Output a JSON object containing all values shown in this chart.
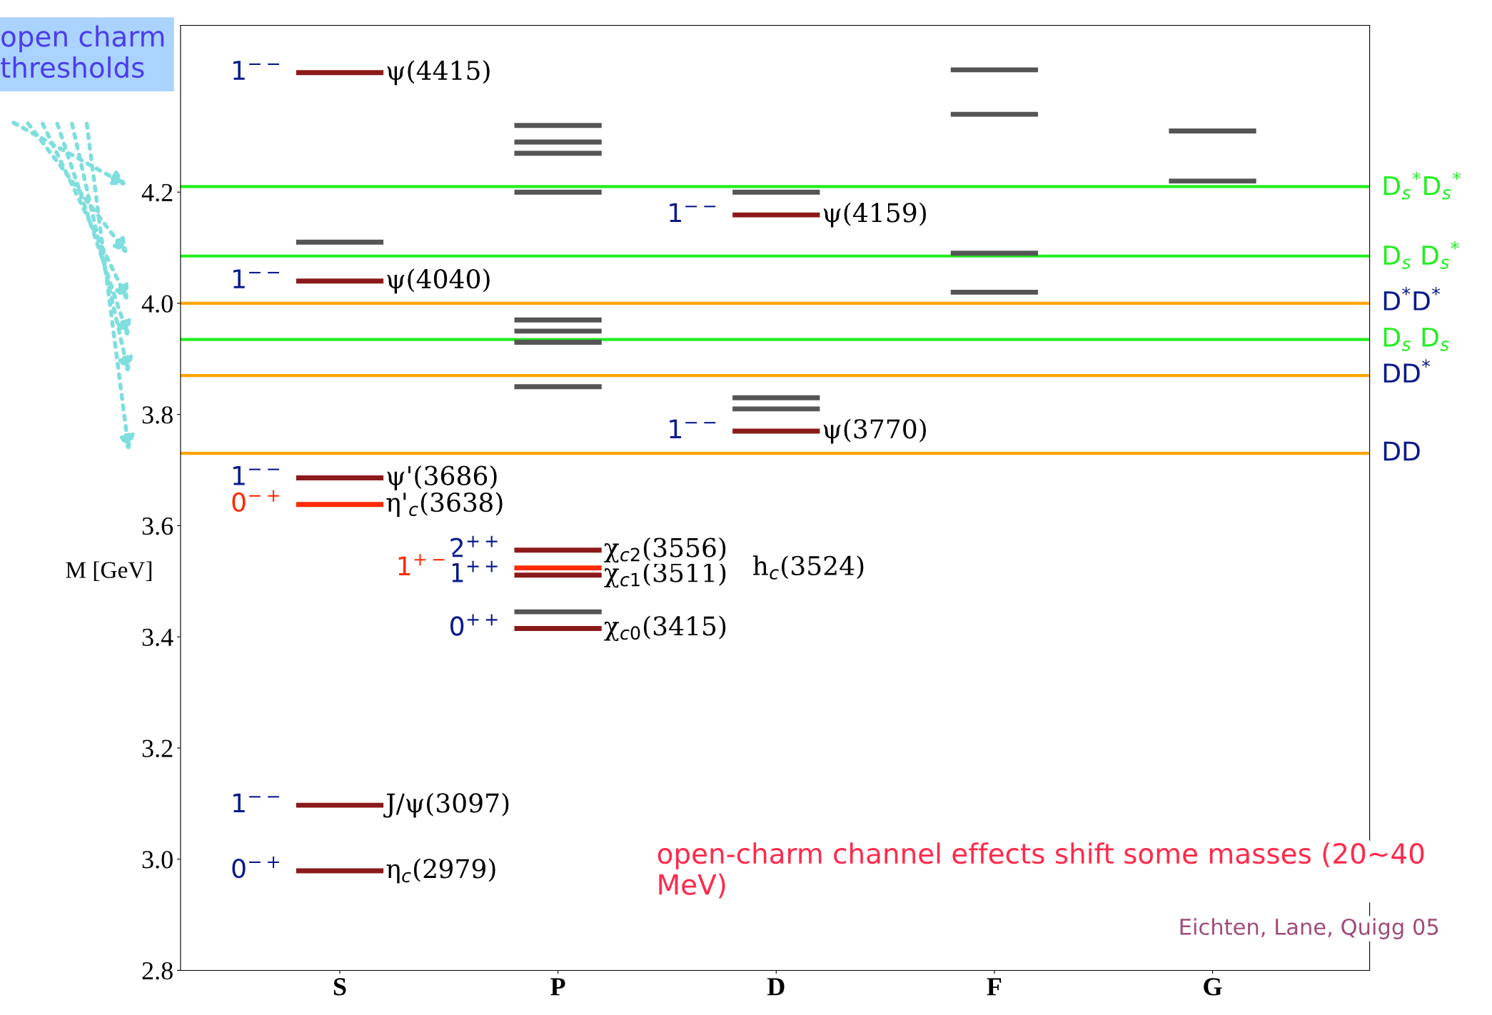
{
  "chart_data": {
    "type": "line",
    "ylabel": "M [GeV]",
    "categories": [
      null,
      null,
      "S",
      null,
      null,
      null,
      null,
      "P",
      null,
      null,
      null,
      null,
      "D",
      null,
      null,
      null,
      null,
      "F",
      null,
      null,
      null,
      null,
      "G",
      null,
      null
    ],
    "ylim": [
      2.8,
      4.5
    ],
    "yticks": [
      2.8,
      {
        "value": 3,
        "label": "3.0"
      },
      3.2,
      3.4,
      3.6,
      3.8,
      {
        "value": 4,
        "label": "4.0"
      },
      4.2
    ],
    "series": [
      {
        "color": "#555555",
        "values": [
          null,
          4.11,
          4.11,
          4.11,
          null,
          null,
          null,
          null,
          null,
          null,
          null,
          null,
          null,
          null,
          null,
          null,
          null,
          null,
          null,
          null,
          null,
          null,
          null,
          null,
          null
        ]
      },
      {
        "color": "#555555",
        "values": [
          null,
          null,
          null,
          null,
          null,
          null,
          4.32,
          4.32,
          4.32,
          null,
          null,
          null,
          null,
          null,
          null,
          null,
          null,
          null,
          null,
          null,
          null,
          null,
          null,
          null,
          null
        ]
      },
      {
        "color": "#555555",
        "values": [
          null,
          null,
          null,
          null,
          null,
          null,
          4.29,
          4.29,
          4.29,
          null,
          null,
          null,
          null,
          null,
          null,
          null,
          null,
          null,
          null,
          null,
          null,
          null,
          null,
          null,
          null
        ]
      },
      {
        "color": "#555555",
        "values": [
          null,
          null,
          null,
          null,
          null,
          null,
          4.27,
          4.27,
          4.27,
          null,
          null,
          null,
          null,
          null,
          null,
          null,
          null,
          null,
          null,
          null,
          null,
          null,
          null,
          null,
          null
        ]
      },
      {
        "color": "#555555",
        "values": [
          null,
          null,
          null,
          null,
          null,
          null,
          4.2,
          4.2,
          4.2,
          null,
          null,
          null,
          null,
          null,
          null,
          null,
          null,
          null,
          null,
          null,
          null,
          null,
          null,
          null,
          null
        ]
      },
      {
        "color": "#555555",
        "values": [
          null,
          null,
          null,
          null,
          null,
          null,
          3.97,
          3.97,
          3.97,
          null,
          null,
          null,
          null,
          null,
          null,
          null,
          null,
          null,
          null,
          null,
          null,
          null,
          null,
          null,
          null
        ]
      },
      {
        "color": "#555555",
        "values": [
          null,
          null,
          null,
          null,
          null,
          null,
          3.95,
          3.95,
          3.95,
          null,
          null,
          null,
          null,
          null,
          null,
          null,
          null,
          null,
          null,
          null,
          null,
          null,
          null,
          null,
          null
        ]
      },
      {
        "color": "#555555",
        "values": [
          null,
          null,
          null,
          null,
          null,
          null,
          3.93,
          3.93,
          3.93,
          null,
          null,
          null,
          null,
          null,
          null,
          null,
          null,
          null,
          null,
          null,
          null,
          null,
          null,
          null,
          null
        ]
      },
      {
        "color": "#555555",
        "values": [
          null,
          null,
          null,
          null,
          null,
          null,
          3.85,
          3.85,
          3.85,
          null,
          null,
          null,
          null,
          null,
          null,
          null,
          null,
          null,
          null,
          null,
          null,
          null,
          null,
          null,
          null
        ]
      },
      {
        "color": "#555555",
        "values": [
          null,
          null,
          null,
          null,
          null,
          null,
          3.445,
          3.445,
          3.445,
          null,
          null,
          null,
          null,
          null,
          null,
          null,
          null,
          null,
          null,
          null,
          null,
          null,
          null,
          null,
          null
        ]
      },
      {
        "color": "#555555",
        "values": [
          null,
          null,
          null,
          null,
          null,
          null,
          null,
          null,
          null,
          null,
          null,
          3.81,
          3.81,
          3.81,
          null,
          null,
          null,
          null,
          null,
          null,
          null,
          null,
          null,
          null,
          null
        ]
      },
      {
        "color": "#555555",
        "values": [
          null,
          null,
          null,
          null,
          null,
          null,
          null,
          null,
          null,
          null,
          null,
          3.83,
          3.83,
          3.83,
          null,
          null,
          null,
          null,
          null,
          null,
          null,
          null,
          null,
          null,
          null
        ]
      },
      {
        "color": "#555555",
        "values": [
          null,
          null,
          null,
          null,
          null,
          null,
          null,
          null,
          null,
          null,
          null,
          4.2,
          4.2,
          4.2,
          null,
          null,
          null,
          null,
          null,
          null,
          null,
          null,
          null,
          null,
          null
        ]
      },
      {
        "color": "#555555",
        "values": [
          null,
          null,
          null,
          null,
          null,
          null,
          null,
          null,
          null,
          null,
          null,
          null,
          null,
          null,
          null,
          null,
          4.02,
          4.02,
          4.02,
          null,
          null,
          null,
          null,
          null,
          null
        ]
      },
      {
        "color": "#555555",
        "values": [
          null,
          null,
          null,
          null,
          null,
          null,
          null,
          null,
          null,
          null,
          null,
          null,
          null,
          null,
          null,
          null,
          4.09,
          4.09,
          4.09,
          null,
          null,
          null,
          null,
          null,
          null
        ]
      },
      {
        "color": "#555555",
        "values": [
          null,
          null,
          null,
          null,
          null,
          null,
          null,
          null,
          null,
          null,
          null,
          null,
          null,
          null,
          null,
          null,
          4.34,
          4.34,
          4.34,
          null,
          null,
          null,
          null,
          null,
          null
        ]
      },
      {
        "color": "#555555",
        "values": [
          null,
          null,
          null,
          null,
          null,
          null,
          null,
          null,
          null,
          null,
          null,
          null,
          null,
          null,
          null,
          null,
          4.42,
          4.42,
          4.42,
          null,
          null,
          null,
          null,
          null,
          null
        ]
      },
      {
        "color": "#555555",
        "values": [
          null,
          null,
          null,
          null,
          null,
          null,
          null,
          null,
          null,
          null,
          null,
          null,
          null,
          null,
          null,
          null,
          null,
          null,
          null,
          null,
          null,
          4.22,
          4.22,
          4.22,
          null
        ]
      },
      {
        "color": "#555555",
        "values": [
          null,
          null,
          null,
          null,
          null,
          null,
          null,
          null,
          null,
          null,
          null,
          null,
          null,
          null,
          null,
          null,
          null,
          null,
          null,
          null,
          null,
          4.31,
          4.31,
          4.31,
          null
        ]
      },
      {
        "name": "η$_{c}$(2979)",
        "color": "#8b1a1a",
        "values": [
          null,
          2.979,
          2.979,
          2.979,
          null,
          null,
          null,
          null,
          null,
          null,
          null,
          null,
          null,
          null,
          null,
          null,
          null,
          null,
          null,
          null,
          null,
          null,
          null,
          null,
          null
        ]
      },
      {
        "name": "J/ψ(3097)",
        "color": "#8b1a1a",
        "values": [
          null,
          3.097,
          3.097,
          3.097,
          null,
          null,
          null,
          null,
          null,
          null,
          null,
          null,
          null,
          null,
          null,
          null,
          null,
          null,
          null,
          null,
          null,
          null,
          null,
          null,
          null
        ]
      },
      {
        "name": "η'$_{c}$(3638)",
        "color": "#ff2a00",
        "values": [
          null,
          3.638,
          3.638,
          3.638,
          null,
          null,
          null,
          null,
          null,
          null,
          null,
          null,
          null,
          null,
          null,
          null,
          null,
          null,
          null,
          null,
          null,
          null,
          null,
          null,
          null
        ]
      },
      {
        "name": "ψ'(3686)",
        "color": "#8b1a1a",
        "values": [
          null,
          3.686,
          3.686,
          3.686,
          null,
          null,
          null,
          null,
          null,
          null,
          null,
          null,
          null,
          null,
          null,
          null,
          null,
          null,
          null,
          null,
          null,
          null,
          null,
          null,
          null
        ]
      },
      {
        "name": "ψ(4040)",
        "color": "#8b1a1a",
        "values": [
          null,
          4.04,
          4.04,
          4.04,
          null,
          null,
          null,
          null,
          null,
          null,
          null,
          null,
          null,
          null,
          null,
          null,
          null,
          null,
          null,
          null,
          null,
          null,
          null,
          null,
          null
        ]
      },
      {
        "name": "ψ(4415)",
        "color": "#8b1a1a",
        "values": [
          null,
          4.415,
          4.415,
          4.415,
          null,
          null,
          null,
          null,
          null,
          null,
          null,
          null,
          null,
          null,
          null,
          null,
          null,
          null,
          null,
          null,
          null,
          null,
          null,
          null,
          null
        ]
      },
      {
        "name": "χ$_{c0}$(3415)",
        "color": "#8b1a1a",
        "values": [
          null,
          null,
          null,
          null,
          null,
          null,
          3.415,
          3.415,
          3.415,
          null,
          null,
          null,
          null,
          null,
          null,
          null,
          null,
          null,
          null,
          null,
          null,
          null,
          null,
          null,
          null
        ]
      },
      {
        "name": "χ$_{c1}$(3511)",
        "color": "#8b1a1a",
        "values": [
          null,
          null,
          null,
          null,
          null,
          null,
          3.511,
          3.511,
          3.511,
          null,
          null,
          null,
          null,
          null,
          null,
          null,
          null,
          null,
          null,
          null,
          null,
          null,
          null,
          null,
          null
        ]
      },
      {
        "name": "h$_{c}$(3524)",
        "color": "#ff2a00",
        "values": [
          null,
          null,
          null,
          null,
          null,
          null,
          3.524,
          3.524,
          3.524,
          null,
          null,
          null,
          null,
          null,
          null,
          null,
          null,
          null,
          null,
          null,
          null,
          null,
          null,
          null,
          null
        ]
      },
      {
        "name": "χ$_{c2}$(3556)",
        "color": "#8b1a1a",
        "values": [
          null,
          null,
          null,
          null,
          null,
          null,
          3.556,
          3.556,
          3.556,
          null,
          null,
          null,
          null,
          null,
          null,
          null,
          null,
          null,
          null,
          null,
          null,
          null,
          null,
          null,
          null
        ]
      },
      {
        "name": "ψ(3770)",
        "color": "#8b1a1a",
        "values": [
          null,
          null,
          null,
          null,
          null,
          null,
          null,
          null,
          null,
          null,
          null,
          3.77,
          3.77,
          3.77,
          null,
          null,
          null,
          null,
          null,
          null,
          null,
          null,
          null,
          null,
          null
        ]
      },
      {
        "name": "ψ(4159)",
        "color": "#8b1a1a",
        "values": [
          null,
          null,
          null,
          null,
          null,
          null,
          null,
          null,
          null,
          null,
          null,
          4.159,
          4.159,
          4.159,
          null,
          null,
          null,
          null,
          null,
          null,
          null,
          null,
          null,
          null,
          null
        ]
      }
    ],
    "ref_lines": [
      {
        "axis": "y",
        "value": 4.21,
        "label": "D$_{s}$$^{*}$D$_{s}$$^{*}$",
        "color": "#22ee22"
      },
      {
        "axis": "y",
        "value": 4.085,
        "label": "D$_{s}$ D$_{s}$$^{*}$",
        "color": "#22ee22"
      },
      {
        "axis": "y",
        "value": 4.0,
        "label": "D$^{*}$D$^{*}$",
        "color": "#ffa500"
      },
      {
        "axis": "y",
        "value": 3.935,
        "label": "D$_{s}$ D$_{s}$",
        "color": "#22ee22"
      },
      {
        "axis": "y",
        "value": 3.87,
        "label": "DD$^{*}$",
        "color": "#ffa500"
      },
      {
        "axis": "y",
        "value": 3.73,
        "label": "DD",
        "color": "#ffa500"
      }
    ],
    "annotations": [
      "open charm thresholds",
      "open-charm channel effects shift some masses (20~40 MeV)",
      "Eichten, Lane, Quigg 05",
      "1$^{+−}$",
      {
        "text": "0$^{−+}$",
        "x": "S",
        "y": 2.979
      },
      {
        "text": "1$^{−−}$",
        "x": "S",
        "y": 3.097
      },
      {
        "text": "0$^{−+}$",
        "x": "S",
        "y": 3.638
      },
      {
        "text": "1$^{−−}$",
        "x": "S",
        "y": 3.686
      },
      {
        "text": "1$^{−−}$",
        "x": "S",
        "y": 4.04
      },
      {
        "text": "1$^{−−}$",
        "x": "S",
        "y": 4.415
      },
      {
        "text": "0$^{++}$",
        "x": "P",
        "y": 3.415
      },
      {
        "text": "1$^{++}$",
        "x": "P",
        "y": 3.511
      },
      {
        "text": "2$^{++}$",
        "x": "P",
        "y": 3.556
      },
      {
        "text": "1$^{−−}$",
        "x": "D",
        "y": 3.77
      },
      {
        "text": "1$^{−−}$",
        "x": "D",
        "y": 4.159
      }
    ]
  }
}
